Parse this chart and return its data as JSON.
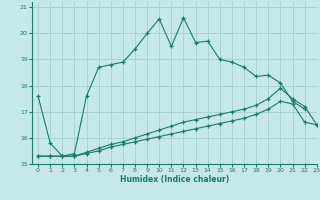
{
  "xlabel": "Humidex (Indice chaleur)",
  "xlim": [
    -0.5,
    23
  ],
  "ylim": [
    15,
    21.2
  ],
  "yticks": [
    15,
    16,
    17,
    18,
    19,
    20,
    21
  ],
  "xticks": [
    0,
    1,
    2,
    3,
    4,
    5,
    6,
    7,
    8,
    9,
    10,
    11,
    12,
    13,
    14,
    15,
    16,
    17,
    18,
    19,
    20,
    21,
    22,
    23
  ],
  "background_color": "#c5e8e8",
  "line_color": "#1a7a6e",
  "grid_color": "#a8d0d0",
  "line1_x": [
    0,
    1,
    2,
    3,
    4,
    5,
    6,
    7,
    8,
    9,
    10,
    11,
    12,
    13,
    14,
    15,
    16,
    17,
    18,
    19,
    20,
    21,
    22
  ],
  "line1_y": [
    17.6,
    15.8,
    15.3,
    15.4,
    17.6,
    18.7,
    18.8,
    18.9,
    19.4,
    20.0,
    20.55,
    19.5,
    20.6,
    19.65,
    19.7,
    19.0,
    18.9,
    18.7,
    18.35,
    18.4,
    18.1,
    17.4,
    17.1
  ],
  "line2_x": [
    0,
    1,
    2,
    3,
    4,
    5,
    6,
    7,
    8,
    9,
    10,
    11,
    12,
    13,
    14,
    15,
    16,
    17,
    18,
    19,
    20,
    21,
    22,
    23
  ],
  "line2_y": [
    15.3,
    15.3,
    15.3,
    15.3,
    15.45,
    15.6,
    15.75,
    15.85,
    16.0,
    16.15,
    16.3,
    16.45,
    16.6,
    16.7,
    16.8,
    16.9,
    17.0,
    17.1,
    17.25,
    17.5,
    17.9,
    17.5,
    17.2,
    16.5
  ],
  "line3_x": [
    0,
    1,
    2,
    3,
    4,
    5,
    6,
    7,
    8,
    9,
    10,
    11,
    12,
    13,
    14,
    15,
    16,
    17,
    18,
    19,
    20,
    21,
    22,
    23
  ],
  "line3_y": [
    15.3,
    15.3,
    15.3,
    15.3,
    15.4,
    15.5,
    15.65,
    15.75,
    15.85,
    15.95,
    16.05,
    16.15,
    16.25,
    16.35,
    16.45,
    16.55,
    16.65,
    16.75,
    16.9,
    17.1,
    17.4,
    17.3,
    16.6,
    16.5
  ]
}
